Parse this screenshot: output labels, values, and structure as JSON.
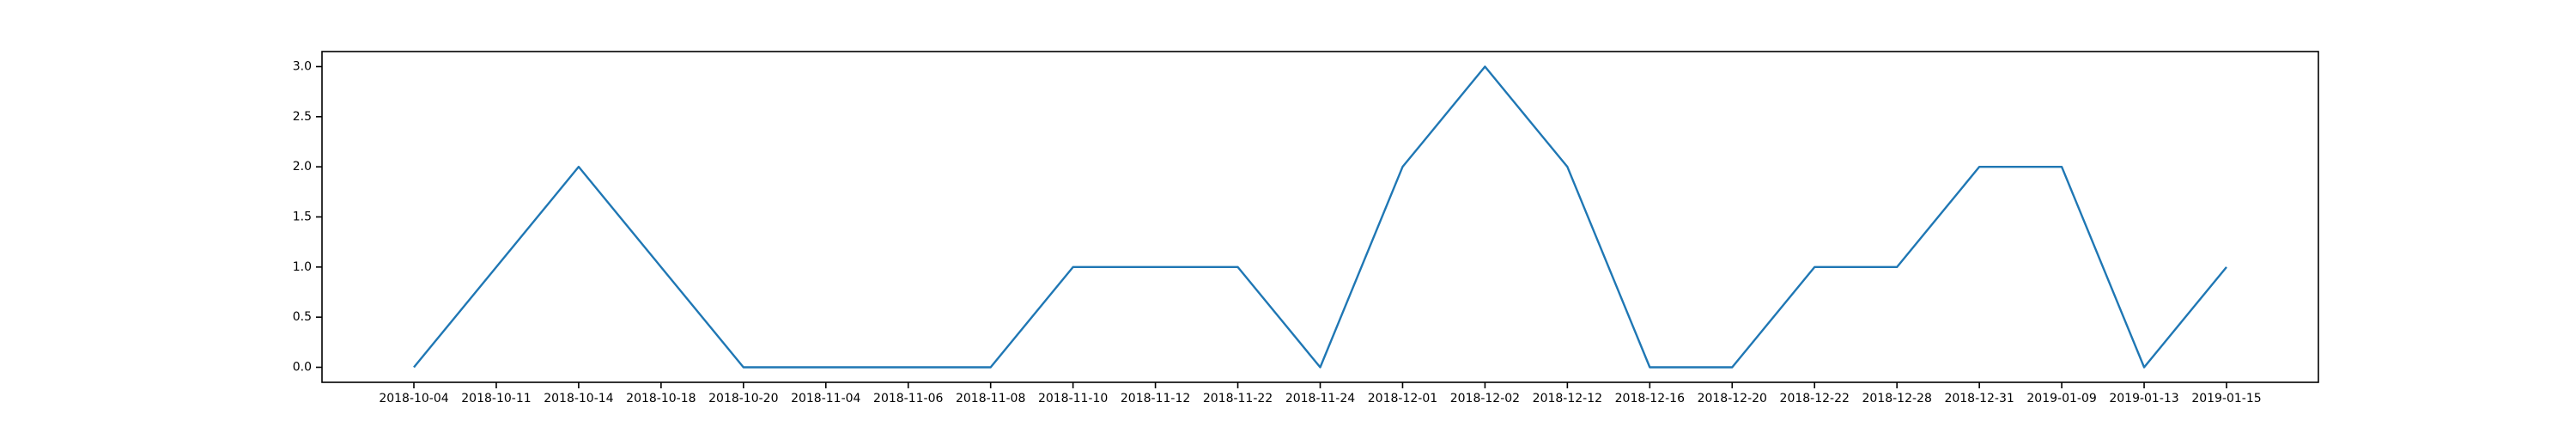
{
  "chart_data": {
    "type": "line",
    "title": "",
    "xlabel": "",
    "ylabel": "",
    "grid": false,
    "x": [
      "2018-10-04",
      "2018-10-11",
      "2018-10-14",
      "2018-10-18",
      "2018-10-20",
      "2018-11-04",
      "2018-11-06",
      "2018-11-08",
      "2018-11-10",
      "2018-11-12",
      "2018-11-22",
      "2018-11-24",
      "2018-12-01",
      "2018-12-02",
      "2018-12-12",
      "2018-12-16",
      "2018-12-20",
      "2018-12-22",
      "2018-12-28",
      "2018-12-31",
      "2019-01-09",
      "2019-01-13",
      "2019-01-15"
    ],
    "yticks": [
      "0.0",
      "0.5",
      "1.0",
      "1.5",
      "2.0",
      "2.5",
      "3.0"
    ],
    "ylim": [
      -0.15,
      3.15
    ],
    "series": [
      {
        "values": [
          0,
          1,
          2,
          1,
          0,
          0,
          0,
          0,
          1,
          1,
          1,
          0,
          2,
          3,
          2,
          0,
          0,
          1,
          1,
          2,
          2,
          0,
          1
        ],
        "color": "#1f77b4"
      }
    ]
  }
}
